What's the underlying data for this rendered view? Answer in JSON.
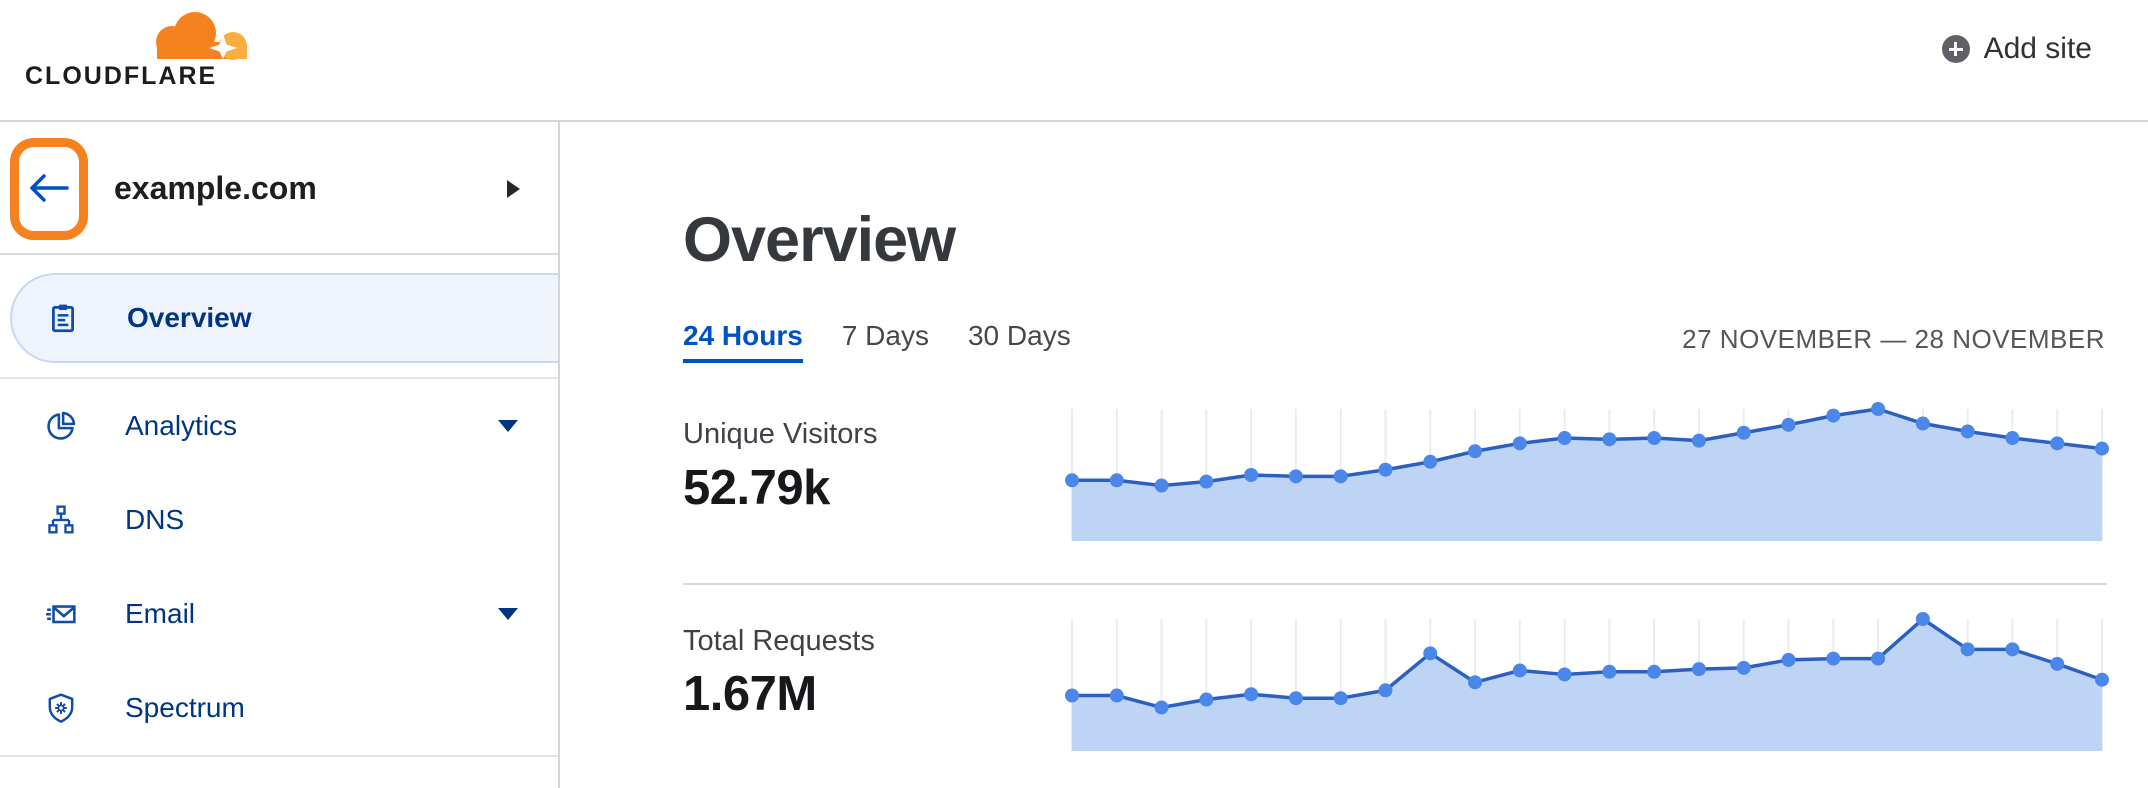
{
  "header": {
    "logo_text": "CLOUDFLARE",
    "add_site_label": "Add site"
  },
  "sidebar": {
    "site_name": "example.com",
    "items": [
      {
        "label": "Overview",
        "icon": "clipboard-icon",
        "active": true,
        "expandable": false
      },
      {
        "label": "Analytics",
        "icon": "pie-chart-icon",
        "active": false,
        "expandable": true
      },
      {
        "label": "DNS",
        "icon": "hierarchy-icon",
        "active": false,
        "expandable": false
      },
      {
        "label": "Email",
        "icon": "envelope-icon",
        "active": false,
        "expandable": true
      },
      {
        "label": "Spectrum",
        "icon": "shield-icon",
        "active": false,
        "expandable": false
      }
    ]
  },
  "main": {
    "title": "Overview",
    "tabs": [
      {
        "label": "24 Hours",
        "active": true
      },
      {
        "label": "7 Days",
        "active": false
      },
      {
        "label": "30 Days",
        "active": false
      }
    ],
    "date_range": "27 NOVEMBER — 28 NOVEMBER",
    "metrics": [
      {
        "label": "Unique Visitors",
        "value": "52.79k"
      },
      {
        "label": "Total Requests",
        "value": "1.67M"
      }
    ]
  },
  "colors": {
    "brand_orange": "#f6821f",
    "brand_orange_light": "#fbad41",
    "link_blue": "#0051c3",
    "nav_navy": "#003681",
    "chart_line": "#2b5fc0",
    "chart_dot": "#4a87e8",
    "chart_fill": "#bdd4f4",
    "chart_grid": "#e9edf2"
  },
  "chart_data": [
    {
      "type": "area",
      "title": "Unique Visitors",
      "total_shown": "52.79k",
      "time_range": "24 Hours",
      "date_range": "27 November — 28 November",
      "x": "24 hourly points, unlabeled",
      "ylabel": "",
      "xlabel": "",
      "ylim": [
        0,
        1
      ],
      "grid": "vertical line at each point",
      "legend": "none",
      "values_relative": [
        0.46,
        0.46,
        0.42,
        0.45,
        0.5,
        0.49,
        0.49,
        0.54,
        0.6,
        0.68,
        0.74,
        0.78,
        0.77,
        0.78,
        0.76,
        0.82,
        0.88,
        0.95,
        1.0,
        0.89,
        0.83,
        0.78,
        0.74,
        0.7
      ]
    },
    {
      "type": "area",
      "title": "Total Requests",
      "total_shown": "1.67M",
      "time_range": "24 Hours",
      "date_range": "27 November — 28 November",
      "x": "24 hourly points, unlabeled",
      "ylabel": "",
      "xlabel": "",
      "ylim": [
        0,
        1
      ],
      "grid": "vertical line at each point",
      "legend": "none",
      "values_relative": [
        0.42,
        0.42,
        0.33,
        0.39,
        0.43,
        0.4,
        0.4,
        0.46,
        0.74,
        0.52,
        0.61,
        0.58,
        0.6,
        0.6,
        0.62,
        0.63,
        0.69,
        0.7,
        0.7,
        1.0,
        0.77,
        0.77,
        0.66,
        0.54
      ]
    }
  ]
}
